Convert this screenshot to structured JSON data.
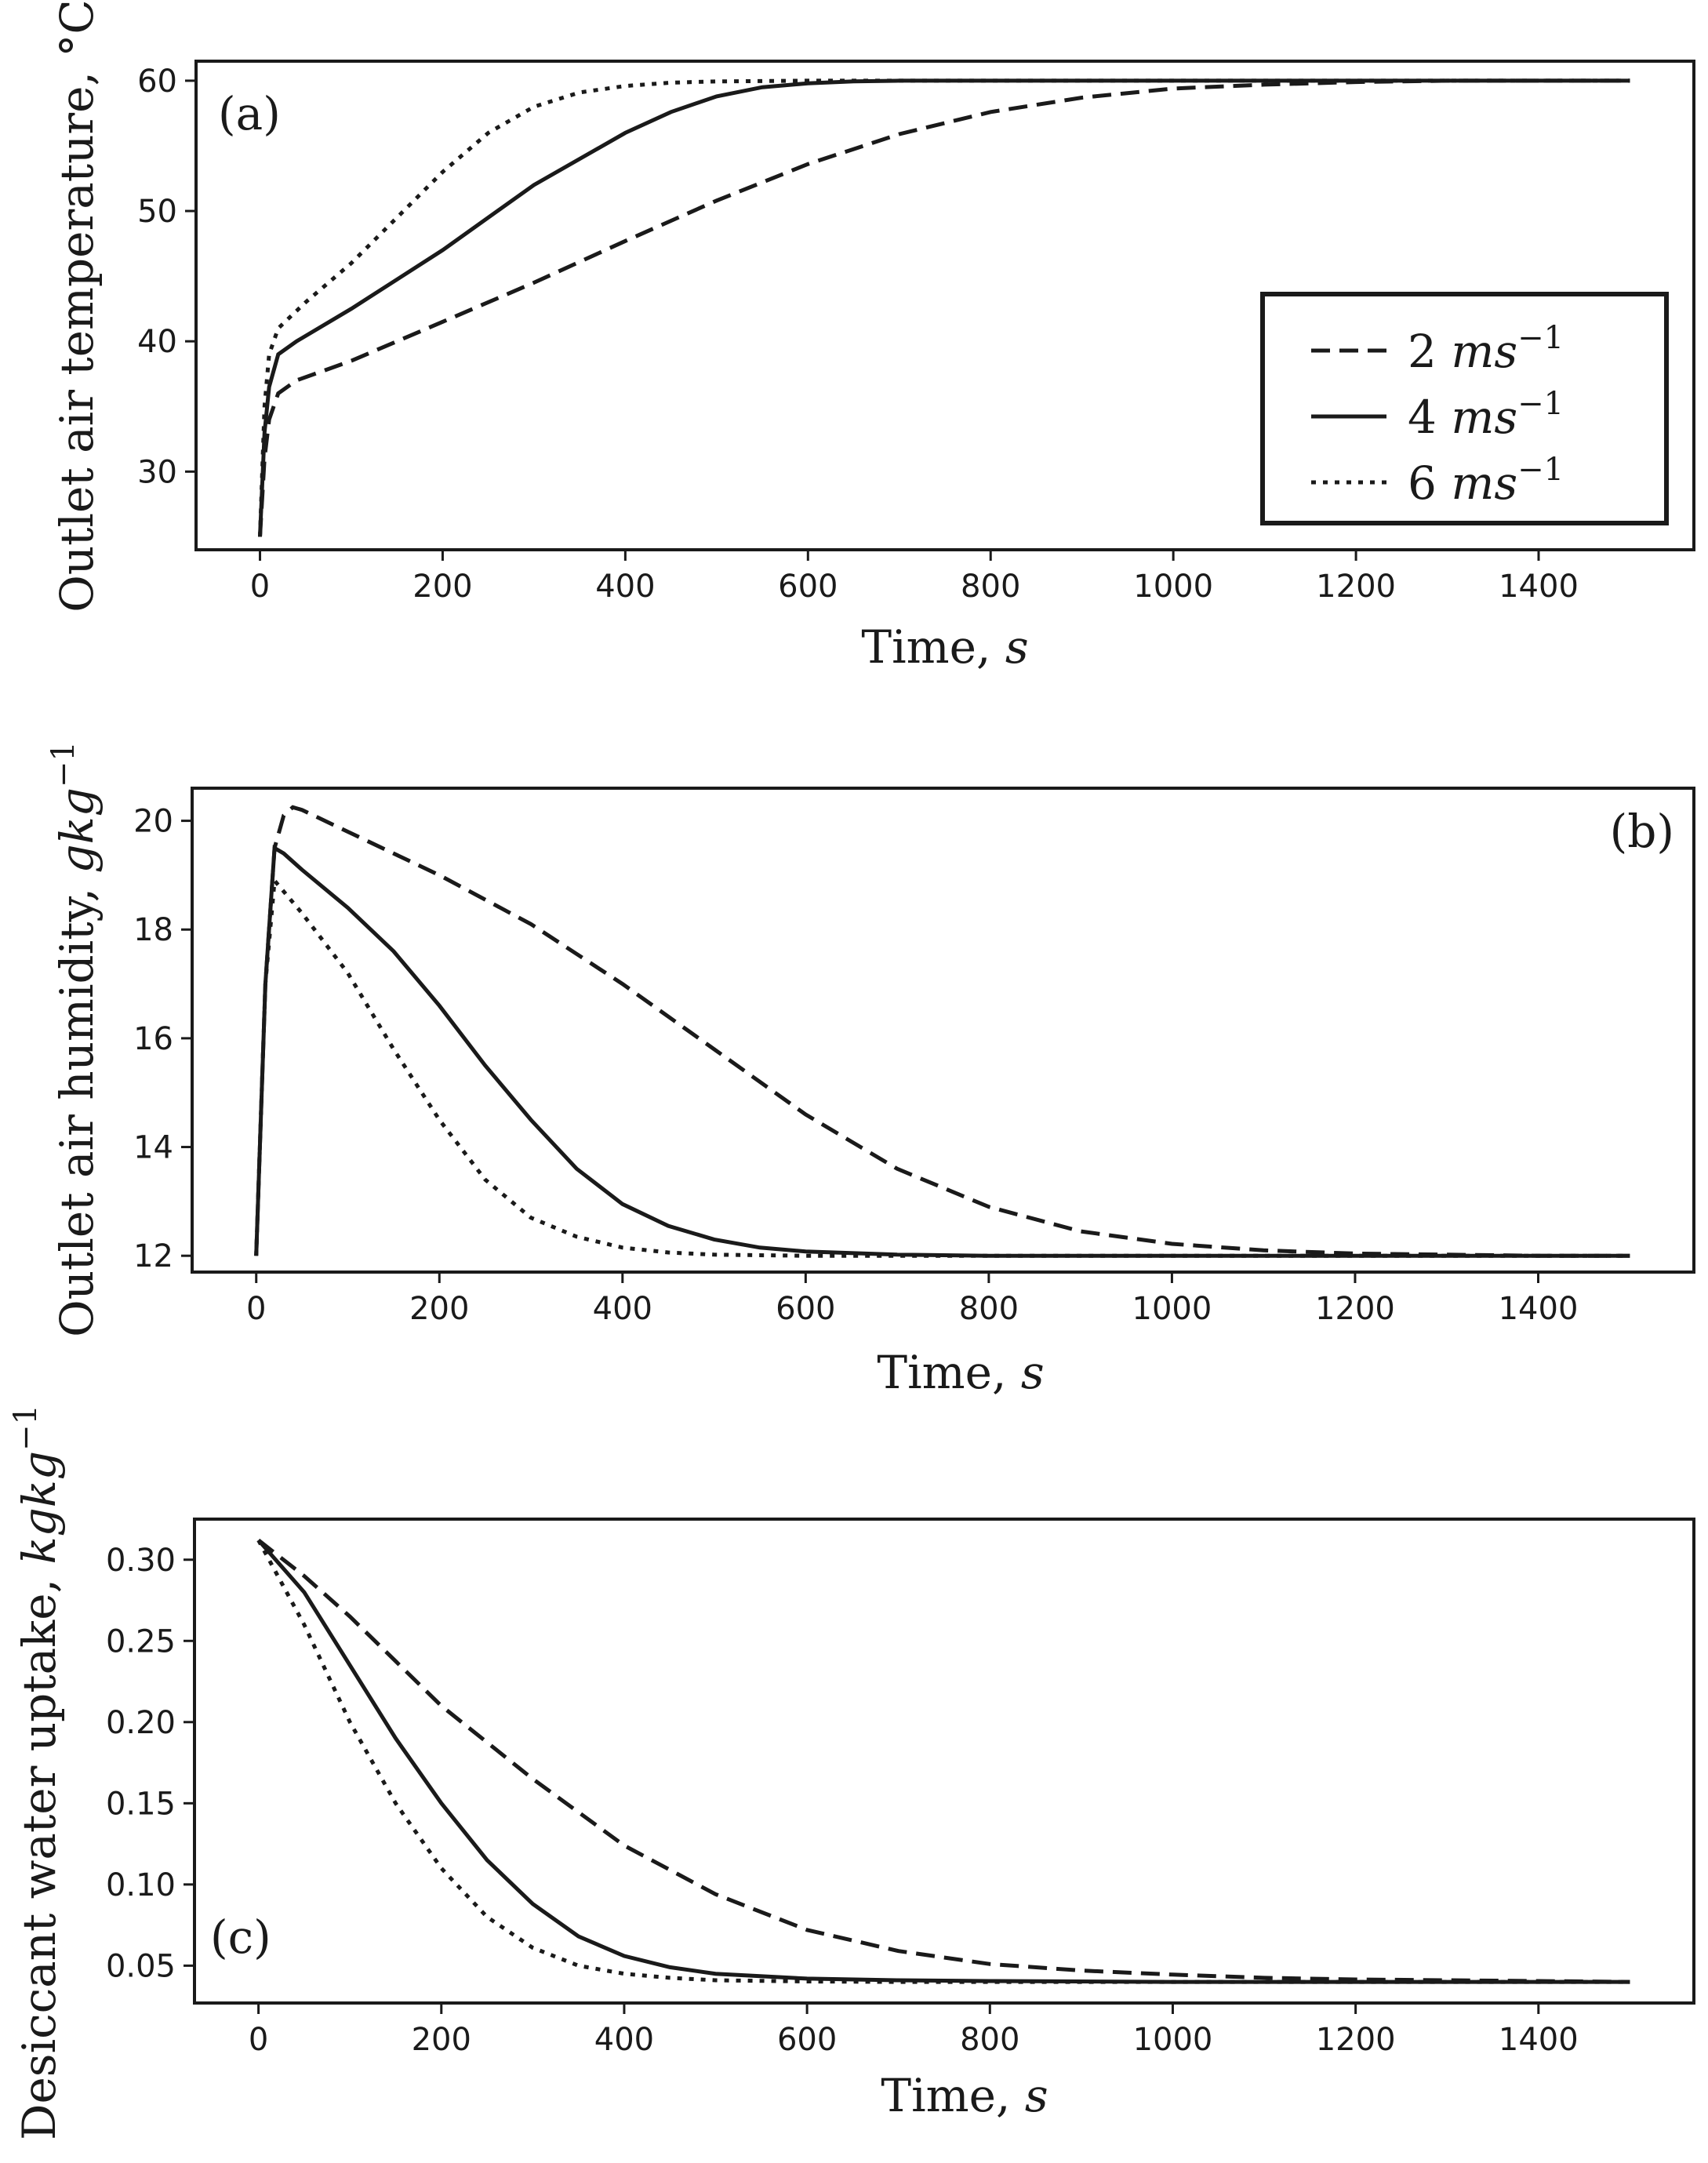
{
  "chart_data": [
    {
      "type": "line",
      "panel_label": "(a)",
      "xlabel_text": "Time, ",
      "xlabel_unit": "s",
      "ylabel_text": "Outlet air temperature,",
      "ylabel_unit": "°C",
      "xlim": [
        -70,
        1570
      ],
      "ylim": [
        24,
        61.5
      ],
      "xticks": [
        0,
        200,
        400,
        600,
        800,
        1000,
        1200,
        1400
      ],
      "yticks": [
        30,
        40,
        50,
        60
      ],
      "legend": {
        "position": "center-right",
        "entries": [
          {
            "value": "2",
            "unit": "ms",
            "exp": "−1",
            "style": "dashed"
          },
          {
            "value": "4",
            "unit": "ms",
            "exp": "−1",
            "style": "solid"
          },
          {
            "value": "6",
            "unit": "ms",
            "exp": "−1",
            "style": "dotted"
          }
        ]
      },
      "series": [
        {
          "name": "2 ms-1",
          "style": "dashed",
          "x": [
            0,
            5,
            10,
            20,
            40,
            100,
            200,
            300,
            400,
            500,
            600,
            700,
            800,
            900,
            1000,
            1100,
            1200,
            1300,
            1400,
            1500
          ],
          "y": [
            25,
            31,
            34,
            36,
            37,
            38.5,
            41.5,
            44.5,
            47.7,
            50.8,
            53.6,
            55.9,
            57.6,
            58.7,
            59.4,
            59.7,
            59.9,
            60,
            60,
            60
          ]
        },
        {
          "name": "4 ms-1",
          "style": "solid",
          "x": [
            0,
            5,
            10,
            20,
            40,
            100,
            200,
            300,
            400,
            450,
            500,
            550,
            600,
            650,
            700,
            800,
            900,
            1000,
            1200,
            1500
          ],
          "y": [
            25,
            33,
            36.5,
            39,
            40,
            42.5,
            47,
            52,
            56,
            57.6,
            58.8,
            59.5,
            59.8,
            59.95,
            60,
            60,
            60,
            60,
            60,
            60
          ]
        },
        {
          "name": "6 ms-1",
          "style": "dotted",
          "x": [
            0,
            5,
            10,
            20,
            50,
            100,
            200,
            250,
            300,
            350,
            400,
            450,
            500,
            600,
            700,
            800,
            1000,
            1200,
            1500
          ],
          "y": [
            25,
            35,
            39,
            41,
            43,
            46,
            53,
            56,
            58,
            59.1,
            59.6,
            59.85,
            59.95,
            60,
            60,
            60,
            60,
            60,
            60
          ]
        }
      ]
    },
    {
      "type": "line",
      "panel_label": "(b)",
      "xlabel_text": "Time, ",
      "xlabel_unit": "s",
      "ylabel_text": "Outlet air humidity,",
      "ylabel_unit": "gkg",
      "ylabel_exp": "−1",
      "xlim": [
        -70,
        1570
      ],
      "ylim": [
        11.7,
        20.6
      ],
      "xticks": [
        0,
        200,
        400,
        600,
        800,
        1000,
        1200,
        1400
      ],
      "yticks": [
        12,
        14,
        16,
        18,
        20
      ],
      "series": [
        {
          "name": "2 ms-1",
          "style": "dashed",
          "x": [
            0,
            10,
            20,
            30,
            40,
            50,
            100,
            200,
            300,
            400,
            500,
            600,
            700,
            800,
            900,
            1000,
            1100,
            1200,
            1300,
            1400,
            1500
          ],
          "y": [
            12,
            17,
            19.5,
            20.1,
            20.25,
            20.2,
            19.8,
            19,
            18.1,
            17,
            15.8,
            14.6,
            13.6,
            12.9,
            12.45,
            12.22,
            12.1,
            12.04,
            12.02,
            12,
            12
          ]
        },
        {
          "name": "4 ms-1",
          "style": "solid",
          "x": [
            0,
            10,
            20,
            30,
            50,
            100,
            150,
            200,
            250,
            300,
            350,
            400,
            450,
            500,
            550,
            600,
            700,
            800,
            1000,
            1200,
            1500
          ],
          "y": [
            12,
            17,
            19.5,
            19.4,
            19.1,
            18.4,
            17.6,
            16.6,
            15.5,
            14.5,
            13.6,
            12.95,
            12.55,
            12.3,
            12.15,
            12.08,
            12.02,
            12,
            12,
            12,
            12
          ]
        },
        {
          "name": "6 ms-1",
          "style": "dotted",
          "x": [
            0,
            10,
            20,
            30,
            50,
            100,
            150,
            200,
            250,
            300,
            350,
            400,
            450,
            500,
            600,
            700,
            800,
            1000,
            1200,
            1500
          ],
          "y": [
            12,
            17,
            18.9,
            18.7,
            18.3,
            17.2,
            15.8,
            14.5,
            13.4,
            12.7,
            12.35,
            12.15,
            12.06,
            12.02,
            12,
            12,
            12,
            12,
            12,
            12
          ]
        }
      ]
    },
    {
      "type": "line",
      "panel_label": "(c)",
      "xlabel_text": "Time, ",
      "xlabel_unit": "s",
      "ylabel_text": "Desiccant water uptake,",
      "ylabel_unit": "kgkg",
      "ylabel_exp": "−1",
      "xlim": [
        -70,
        1570
      ],
      "ylim": [
        0.027,
        0.325
      ],
      "xticks": [
        0,
        200,
        400,
        600,
        800,
        1000,
        1200,
        1400
      ],
      "yticks": [
        "0.05",
        "0.10",
        "0.15",
        "0.20",
        "0.25",
        "0.30"
      ],
      "series": [
        {
          "name": "2 ms-1",
          "style": "dashed",
          "x": [
            0,
            50,
            100,
            200,
            300,
            400,
            500,
            600,
            700,
            800,
            900,
            1000,
            1100,
            1200,
            1300,
            1400,
            1500
          ],
          "y": [
            0.312,
            0.29,
            0.265,
            0.21,
            0.165,
            0.124,
            0.094,
            0.072,
            0.059,
            0.051,
            0.047,
            0.0445,
            0.0425,
            0.0415,
            0.041,
            0.0405,
            0.04
          ]
        },
        {
          "name": "4 ms-1",
          "style": "solid",
          "x": [
            0,
            50,
            100,
            150,
            200,
            250,
            300,
            350,
            400,
            450,
            500,
            600,
            700,
            800,
            1000,
            1200,
            1500
          ],
          "y": [
            0.312,
            0.28,
            0.235,
            0.19,
            0.15,
            0.115,
            0.088,
            0.068,
            0.056,
            0.049,
            0.045,
            0.042,
            0.041,
            0.0405,
            0.04,
            0.04,
            0.04
          ]
        },
        {
          "name": "6 ms-1",
          "style": "dotted",
          "x": [
            0,
            50,
            100,
            150,
            200,
            250,
            300,
            350,
            400,
            450,
            500,
            600,
            700,
            800,
            1000,
            1200,
            1500
          ],
          "y": [
            0.312,
            0.26,
            0.2,
            0.15,
            0.11,
            0.08,
            0.061,
            0.05,
            0.045,
            0.0425,
            0.041,
            0.0403,
            0.04,
            0.04,
            0.04,
            0.04,
            0.04
          ]
        }
      ]
    }
  ]
}
